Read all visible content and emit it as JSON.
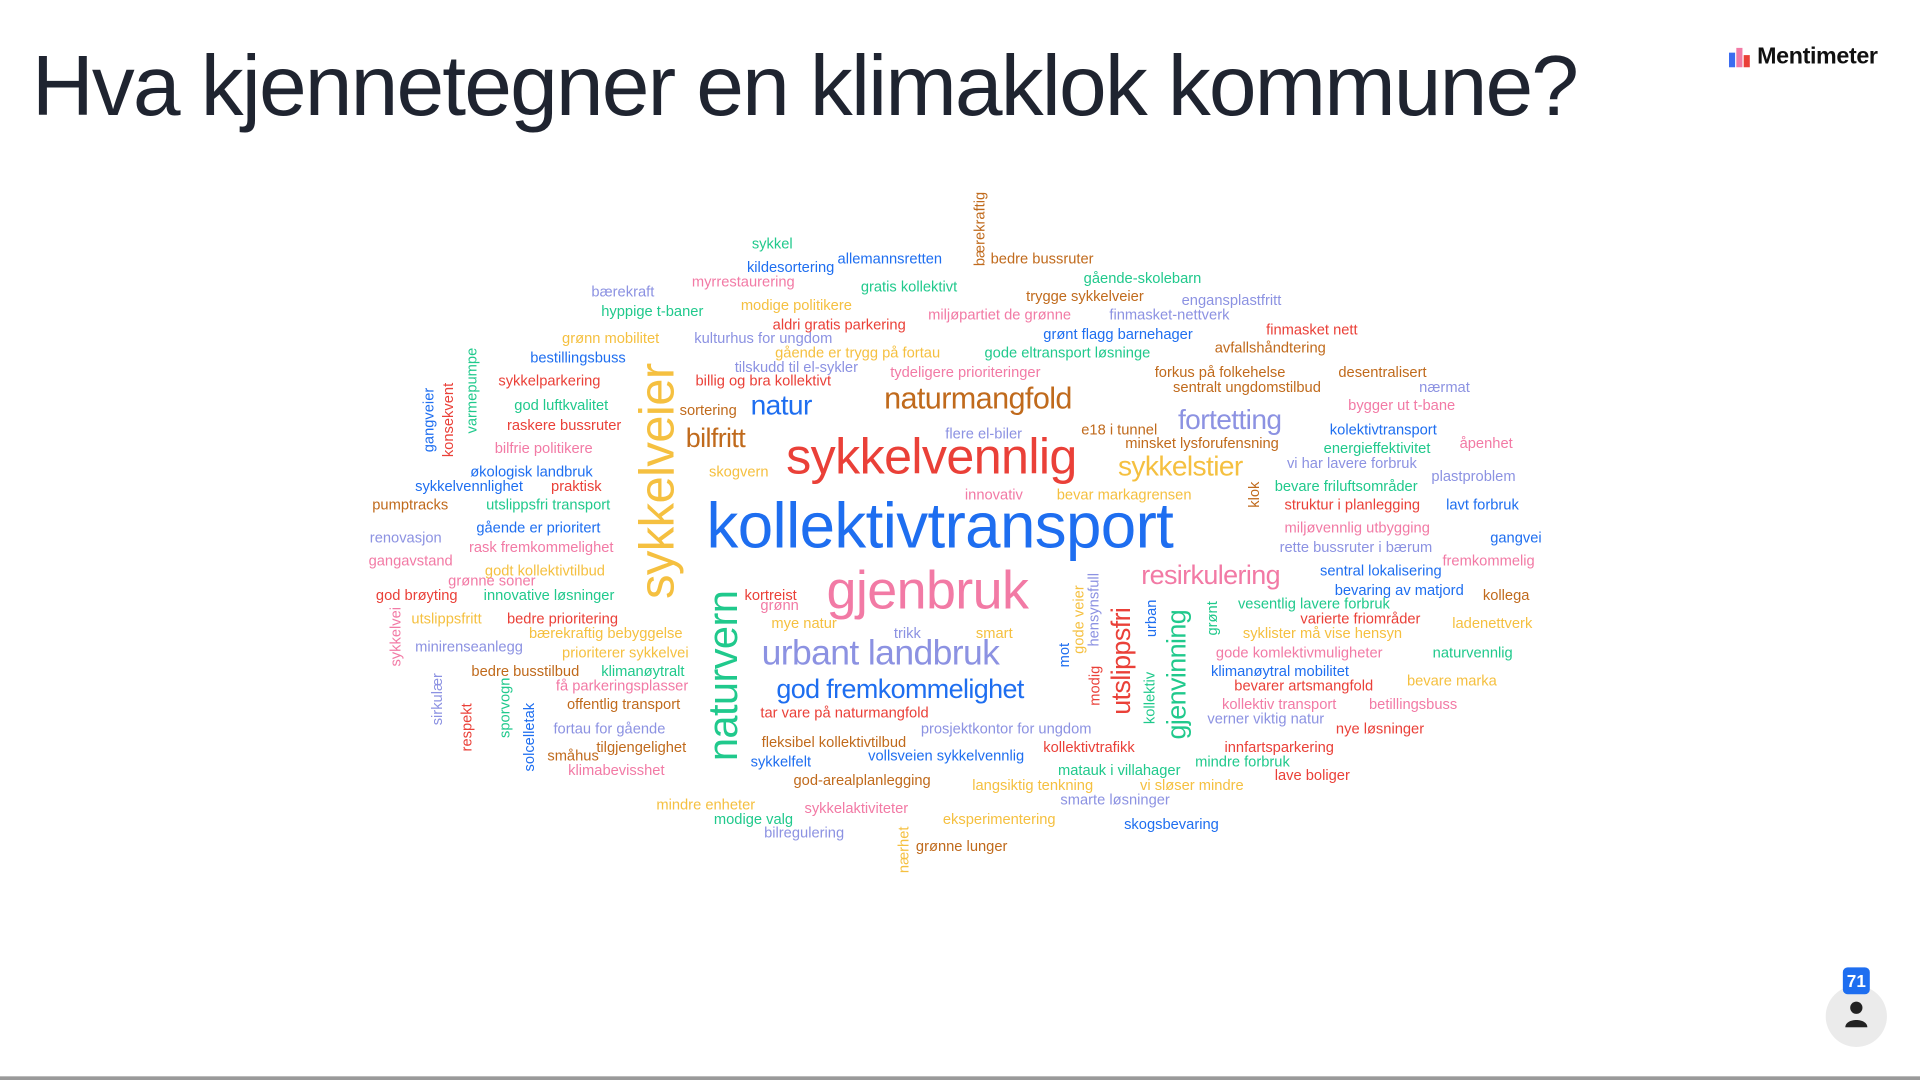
{
  "title": "Hva kjennetegner en klimaklok kommune?",
  "brand": {
    "name": "Mentimeter",
    "icon": "mentimeter-logo-icon"
  },
  "participants": {
    "count": "71",
    "icon": "person-icon"
  },
  "colors": {
    "blue": "#1e6ef0",
    "red": "#ea4038",
    "pink": "#f27aa5",
    "brown": "#c06a1c",
    "yellow": "#f5c040",
    "green": "#20c98c",
    "lavender": "#8c92e2",
    "title": "#1f2430"
  },
  "words": [
    {
      "text": "sykkel",
      "color": "green"
    },
    {
      "text": "kildesortering",
      "color": "blue"
    },
    {
      "text": "allemannsretten",
      "color": "blue"
    },
    {
      "text": "bærekraftig",
      "color": "brown"
    },
    {
      "text": "bedre bussruter",
      "color": "brown"
    },
    {
      "text": "myrrestaurering",
      "color": "pink"
    },
    {
      "text": "gratis kollektivt",
      "color": "green"
    },
    {
      "text": "gående-skolebarn",
      "color": "green"
    },
    {
      "text": "bærekraft",
      "color": "lavender"
    },
    {
      "text": "trygge sykkelveier",
      "color": "brown"
    },
    {
      "text": "engansplastfritt",
      "color": "lavender"
    },
    {
      "text": "hyppige t-baner",
      "color": "green"
    },
    {
      "text": "modige politikere",
      "color": "yellow"
    },
    {
      "text": "miljøpartiet de grønne",
      "color": "pink"
    },
    {
      "text": "finmasket-nettverk",
      "color": "lavender"
    },
    {
      "text": "aldri gratis parkering",
      "color": "red"
    },
    {
      "text": "grønt flagg barnehager",
      "color": "blue"
    },
    {
      "text": "finmasket nett",
      "color": "red"
    },
    {
      "text": "grønn mobilitet",
      "color": "yellow"
    },
    {
      "text": "kulturhus for ungdom",
      "color": "lavender"
    },
    {
      "text": "avfallshåndtering",
      "color": "brown"
    },
    {
      "text": "bestillingsbuss",
      "color": "blue"
    },
    {
      "text": "gående er trygg på fortau",
      "color": "yellow"
    },
    {
      "text": "gode eltransport løsninge",
      "color": "green"
    },
    {
      "text": "tilskudd til el-sykler",
      "color": "lavender"
    },
    {
      "text": "tydeligere prioriteringer",
      "color": "pink"
    },
    {
      "text": "forkus på folkehelse",
      "color": "brown"
    },
    {
      "text": "desentralisert",
      "color": "brown"
    },
    {
      "text": "sykkelparkering",
      "color": "red"
    },
    {
      "text": "billig og bra kollektivt",
      "color": "red"
    },
    {
      "text": "sentralt ungdomstilbud",
      "color": "brown"
    },
    {
      "text": "nærmat",
      "color": "lavender"
    },
    {
      "text": "varmepumpe",
      "color": "green"
    },
    {
      "text": "konsekvent",
      "color": "red"
    },
    {
      "text": "gangveier",
      "color": "blue"
    },
    {
      "text": "sykkelveier",
      "color": "yellow"
    },
    {
      "text": "naturmangfold",
      "color": "brown"
    },
    {
      "text": "natur",
      "color": "blue"
    },
    {
      "text": "god luftkvalitet",
      "color": "green"
    },
    {
      "text": "bygger ut t-bane",
      "color": "pink"
    },
    {
      "text": "sortering",
      "color": "brown"
    },
    {
      "text": "fortetting",
      "color": "lavender"
    },
    {
      "text": "raskere bussruter",
      "color": "red"
    },
    {
      "text": "kolektivtransport",
      "color": "blue"
    },
    {
      "text": "e18 i tunnel",
      "color": "brown"
    },
    {
      "text": "flere el-biler",
      "color": "lavender"
    },
    {
      "text": "bilfritt",
      "color": "brown"
    },
    {
      "text": "sykkelvennlig",
      "color": "red"
    },
    {
      "text": "minsket lysforufensning",
      "color": "brown"
    },
    {
      "text": "åpenhet",
      "color": "pink"
    },
    {
      "text": "bilfrie politikere",
      "color": "pink"
    },
    {
      "text": "energieffektivitet",
      "color": "green"
    },
    {
      "text": "vi har lavere forbruk",
      "color": "lavender"
    },
    {
      "text": "sykkelstier",
      "color": "yellow"
    },
    {
      "text": "økologisk landbruk",
      "color": "blue"
    },
    {
      "text": "skogvern",
      "color": "yellow"
    },
    {
      "text": "plastproblem",
      "color": "lavender"
    },
    {
      "text": "sykkelvennlighet",
      "color": "blue"
    },
    {
      "text": "praktisk",
      "color": "red"
    },
    {
      "text": "bevare friluftsområder",
      "color": "green"
    },
    {
      "text": "klok",
      "color": "brown"
    },
    {
      "text": "innovativ",
      "color": "pink"
    },
    {
      "text": "bevar markagrensen",
      "color": "yellow"
    },
    {
      "text": "pumptracks",
      "color": "brown"
    },
    {
      "text": "utslippsfri transport",
      "color": "green"
    },
    {
      "text": "struktur i planlegging",
      "color": "red"
    },
    {
      "text": "lavt forbruk",
      "color": "blue"
    },
    {
      "text": "kollektivtransport",
      "color": "blue"
    },
    {
      "text": "gående er prioritert",
      "color": "blue"
    },
    {
      "text": "miljøvennlig utbygging",
      "color": "pink"
    },
    {
      "text": "renovasjon",
      "color": "lavender"
    },
    {
      "text": "gangvei",
      "color": "blue"
    },
    {
      "text": "rask fremkommelighet",
      "color": "pink"
    },
    {
      "text": "rette bussruter i bærum",
      "color": "lavender"
    },
    {
      "text": "gangavstand",
      "color": "pink"
    },
    {
      "text": "fremkommelig",
      "color": "pink"
    },
    {
      "text": "godt kollektivtilbud",
      "color": "yellow"
    },
    {
      "text": "sentral lokalisering",
      "color": "blue"
    },
    {
      "text": "resirkulering",
      "color": "pink"
    },
    {
      "text": "grønne soner",
      "color": "pink"
    },
    {
      "text": "gjenbruk",
      "color": "pink"
    },
    {
      "text": "bevaring av matjord",
      "color": "blue"
    },
    {
      "text": "god brøyting",
      "color": "red"
    },
    {
      "text": "innovative løsninger",
      "color": "green"
    },
    {
      "text": "kortreist",
      "color": "red"
    },
    {
      "text": "grønn",
      "color": "pink"
    },
    {
      "text": "kollega",
      "color": "brown"
    },
    {
      "text": "vesentlig lavere forbruk",
      "color": "green"
    },
    {
      "text": "naturvern",
      "color": "green"
    },
    {
      "text": "hensynsfull",
      "color": "lavender"
    },
    {
      "text": "gode veier",
      "color": "yellow"
    },
    {
      "text": "utslippsfri",
      "color": "red"
    },
    {
      "text": "urban",
      "color": "blue"
    },
    {
      "text": "gjenvinning",
      "color": "green"
    },
    {
      "text": "grønt",
      "color": "green"
    },
    {
      "text": "sykkelvei",
      "color": "pink"
    },
    {
      "text": "utslippsfritt",
      "color": "yellow"
    },
    {
      "text": "bedre prioritering",
      "color": "red"
    },
    {
      "text": "varierte friområder",
      "color": "red"
    },
    {
      "text": "mye natur",
      "color": "yellow"
    },
    {
      "text": "ladenettverk",
      "color": "yellow"
    },
    {
      "text": "bærekraftig bebyggelse",
      "color": "yellow"
    },
    {
      "text": "trikk",
      "color": "lavender"
    },
    {
      "text": "smart",
      "color": "yellow"
    },
    {
      "text": "syklister må vise hensyn",
      "color": "yellow"
    },
    {
      "text": "urbant landbruk",
      "color": "lavender"
    },
    {
      "text": "minirenseanlegg",
      "color": "lavender"
    },
    {
      "text": "prioriterer sykkelvei",
      "color": "yellow"
    },
    {
      "text": "mot",
      "color": "blue"
    },
    {
      "text": "gode komlektivmuligheter",
      "color": "pink"
    },
    {
      "text": "naturvennlig",
      "color": "green"
    },
    {
      "text": "modig",
      "color": "red"
    },
    {
      "text": "bedre busstilbud",
      "color": "brown"
    },
    {
      "text": "klimanøytralt",
      "color": "green"
    },
    {
      "text": "klimanøytral mobilitet",
      "color": "blue"
    },
    {
      "text": "sirkulær",
      "color": "lavender"
    },
    {
      "text": "få parkeringsplasser",
      "color": "pink"
    },
    {
      "text": "bevarer artsmangfold",
      "color": "red"
    },
    {
      "text": "bevare marka",
      "color": "yellow"
    },
    {
      "text": "god fremkommelighet",
      "color": "blue"
    },
    {
      "text": "kollektiv",
      "color": "green"
    },
    {
      "text": "sporvogn",
      "color": "green"
    },
    {
      "text": "offentlig transport",
      "color": "brown"
    },
    {
      "text": "kollektiv transport",
      "color": "pink"
    },
    {
      "text": "betillingsbuss",
      "color": "pink"
    },
    {
      "text": "respekt",
      "color": "red"
    },
    {
      "text": "solcelletak",
      "color": "blue"
    },
    {
      "text": "tar vare på naturmangfold",
      "color": "red"
    },
    {
      "text": "verner viktig natur",
      "color": "lavender"
    },
    {
      "text": "fortau for gående",
      "color": "lavender"
    },
    {
      "text": "prosjektkontor for ungdom",
      "color": "lavender"
    },
    {
      "text": "nye løsninger",
      "color": "red"
    },
    {
      "text": "tilgjengelighet",
      "color": "brown"
    },
    {
      "text": "småhus",
      "color": "brown"
    },
    {
      "text": "fleksibel kollektivtilbud",
      "color": "brown"
    },
    {
      "text": "kollektivtrafikk",
      "color": "red"
    },
    {
      "text": "innfartsparkering",
      "color": "red"
    },
    {
      "text": "sykkelfelt",
      "color": "blue"
    },
    {
      "text": "vollsveien sykkelvennlig",
      "color": "blue"
    },
    {
      "text": "mindre forbruk",
      "color": "green"
    },
    {
      "text": "klimabevisshet",
      "color": "pink"
    },
    {
      "text": "matauk i villahager",
      "color": "green"
    },
    {
      "text": "lave boliger",
      "color": "red"
    },
    {
      "text": "god-arealplanlegging",
      "color": "brown"
    },
    {
      "text": "langsiktig tenkning",
      "color": "yellow"
    },
    {
      "text": "vi sløser mindre",
      "color": "yellow"
    },
    {
      "text": "smarte løsninger",
      "color": "lavender"
    },
    {
      "text": "mindre enheter",
      "color": "yellow"
    },
    {
      "text": "sykkelaktiviteter",
      "color": "pink"
    },
    {
      "text": "modige valg",
      "color": "green"
    },
    {
      "text": "eksperimentering",
      "color": "yellow"
    },
    {
      "text": "skogsbevaring",
      "color": "blue"
    },
    {
      "text": "bilregulering",
      "color": "lavender"
    },
    {
      "text": "nærhet",
      "color": "yellow"
    },
    {
      "text": "grønne lunger",
      "color": "brown"
    }
  ]
}
